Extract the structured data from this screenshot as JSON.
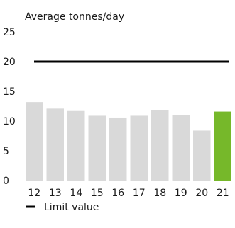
{
  "chart_data": {
    "type": "bar",
    "ylabel": "Average tonnes/day",
    "categories": [
      "12",
      "13",
      "14",
      "15",
      "16",
      "17",
      "18",
      "19",
      "20",
      "21"
    ],
    "values": [
      13.2,
      12.1,
      11.7,
      10.9,
      10.6,
      10.9,
      11.8,
      11.0,
      8.4,
      11.6
    ],
    "ylim": [
      0,
      25
    ],
    "yticks": [
      "0",
      "5",
      "10",
      "15",
      "20",
      "25"
    ],
    "limit_value": 20,
    "legend": {
      "label": "Limit value",
      "position": "bottom-left"
    },
    "grid": false,
    "colors": {
      "bar": "#d9d9d9",
      "highlight_bar": "#76b82a",
      "limit_line": "#000000"
    }
  }
}
